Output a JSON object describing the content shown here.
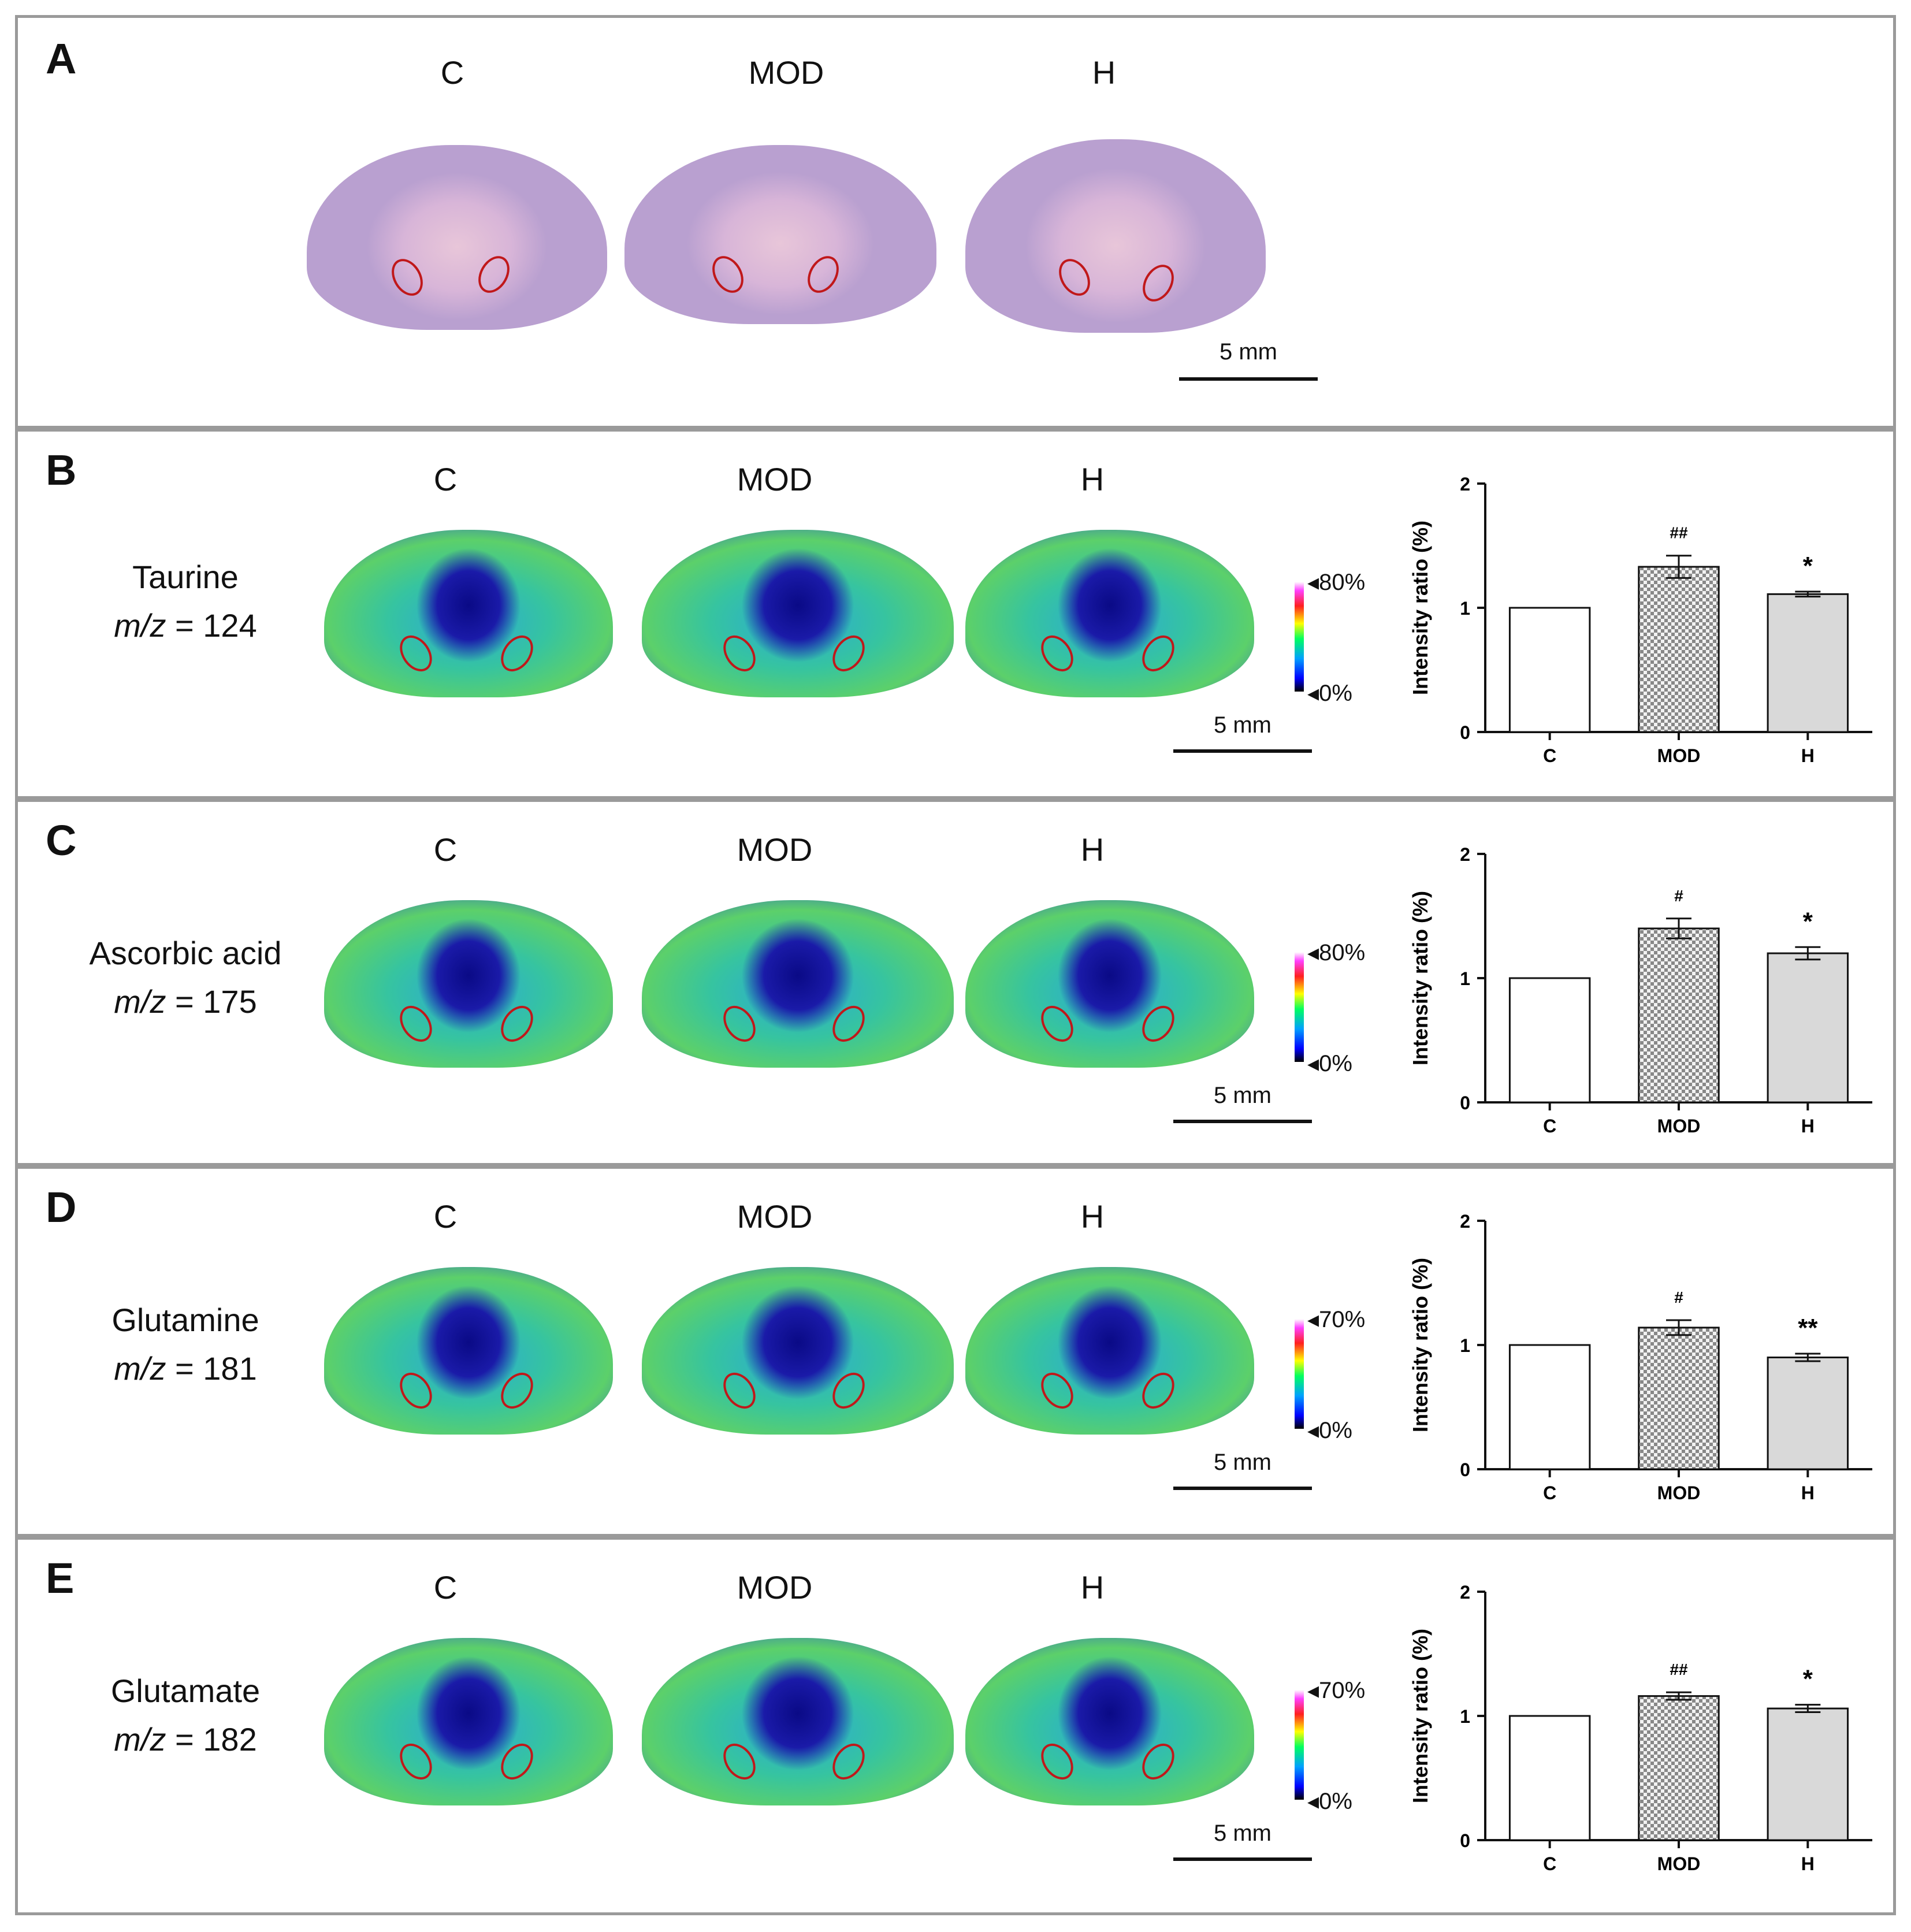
{
  "panel_a": {
    "label": "A",
    "groups": [
      "C",
      "MOD",
      "H"
    ],
    "scale_bar": "5 mm"
  },
  "panels": [
    {
      "label": "B",
      "groups": [
        "C",
        "MOD",
        "H"
      ],
      "metabolite": "Taurine",
      "mz_prefix": "m/z",
      "mz_value": " = 124",
      "colorbar_max": "80%",
      "colorbar_min": "0%",
      "scale_bar": "5 mm"
    },
    {
      "label": "C",
      "groups": [
        "C",
        "MOD",
        "H"
      ],
      "metabolite": "Ascorbic acid",
      "mz_prefix": "m/z",
      "mz_value": " = 175",
      "colorbar_max": "80%",
      "colorbar_min": "0%",
      "scale_bar": "5 mm"
    },
    {
      "label": "D",
      "groups": [
        "C",
        "MOD",
        "H"
      ],
      "metabolite": "Glutamine",
      "mz_prefix": "m/z",
      "mz_value": " = 181",
      "colorbar_max": "70%",
      "colorbar_min": "0%",
      "scale_bar": "5 mm"
    },
    {
      "label": "E",
      "groups": [
        "C",
        "MOD",
        "H"
      ],
      "metabolite": "Glutamate",
      "mz_prefix": "m/z",
      "mz_value": " = 182",
      "colorbar_max": "70%",
      "colorbar_min": "0%",
      "scale_bar": "5 mm"
    }
  ],
  "colors": {
    "bar_C": "#ffffff",
    "bar_MOD": "#d8d8d8",
    "bar_H": "#d9d9d9",
    "axis": "#111111",
    "panel_border": "#9a9a9a",
    "roi": "#c0181a"
  },
  "chart_data": [
    {
      "type": "bar",
      "panel": "B",
      "categories": [
        "C",
        "MOD",
        "H"
      ],
      "values": [
        1.0,
        1.33,
        1.11
      ],
      "errors": [
        0,
        0.09,
        0.02
      ],
      "annotations": [
        "",
        "##",
        "*"
      ],
      "ylabel": "Intensity ratio (%)",
      "ylim": [
        0,
        2
      ],
      "yticks": [
        "0",
        "1",
        "2"
      ]
    },
    {
      "type": "bar",
      "panel": "C",
      "categories": [
        "C",
        "MOD",
        "H"
      ],
      "values": [
        1.0,
        1.4,
        1.2
      ],
      "errors": [
        0,
        0.08,
        0.05
      ],
      "annotations": [
        "",
        "#",
        "*"
      ],
      "ylabel": "Intensity ratio (%)",
      "ylim": [
        0,
        2
      ],
      "yticks": [
        "0",
        "1",
        "2"
      ]
    },
    {
      "type": "bar",
      "panel": "D",
      "categories": [
        "C",
        "MOD",
        "H"
      ],
      "values": [
        1.0,
        1.14,
        0.9
      ],
      "errors": [
        0,
        0.06,
        0.03
      ],
      "annotations": [
        "",
        "#",
        "**"
      ],
      "ylabel": "Intensity ratio (%)",
      "ylim": [
        0,
        2
      ],
      "yticks": [
        "0",
        "1",
        "2"
      ]
    },
    {
      "type": "bar",
      "panel": "E",
      "categories": [
        "C",
        "MOD",
        "H"
      ],
      "values": [
        1.0,
        1.16,
        1.06
      ],
      "errors": [
        0,
        0.03,
        0.03
      ],
      "annotations": [
        "",
        "##",
        "*"
      ],
      "ylabel": "Intensity ratio (%)",
      "ylim": [
        0,
        2
      ],
      "yticks": [
        "0",
        "1",
        "2"
      ]
    }
  ]
}
